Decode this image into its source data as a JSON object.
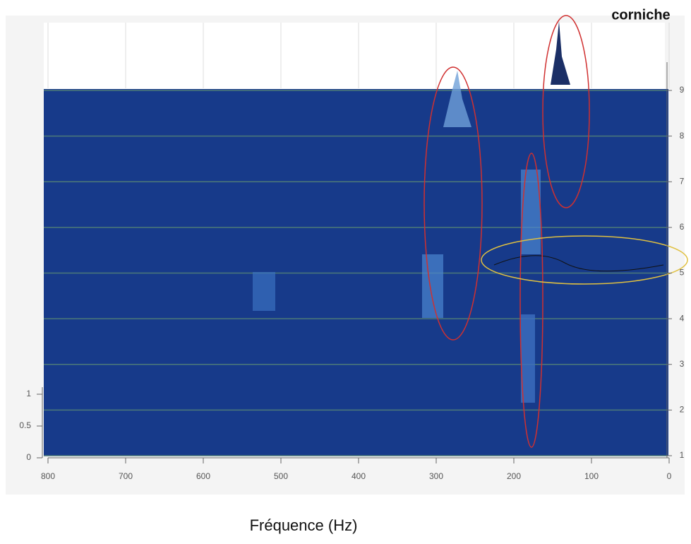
{
  "chart_data": {
    "type": "waterfall",
    "annotation": "corniche",
    "xlabel": "Fréquence (Hz)",
    "xlim": [
      800,
      0
    ],
    "xticks": [
      800,
      700,
      600,
      500,
      400,
      300,
      200,
      100,
      0
    ],
    "ylim": [
      1,
      9
    ],
    "yticks": [
      1,
      2,
      3,
      4,
      5,
      6,
      7,
      8,
      9
    ],
    "zlim": [
      0,
      1
    ],
    "zticks": [
      0,
      0.5,
      1
    ],
    "color": "#173a8a",
    "grid": true
  }
}
